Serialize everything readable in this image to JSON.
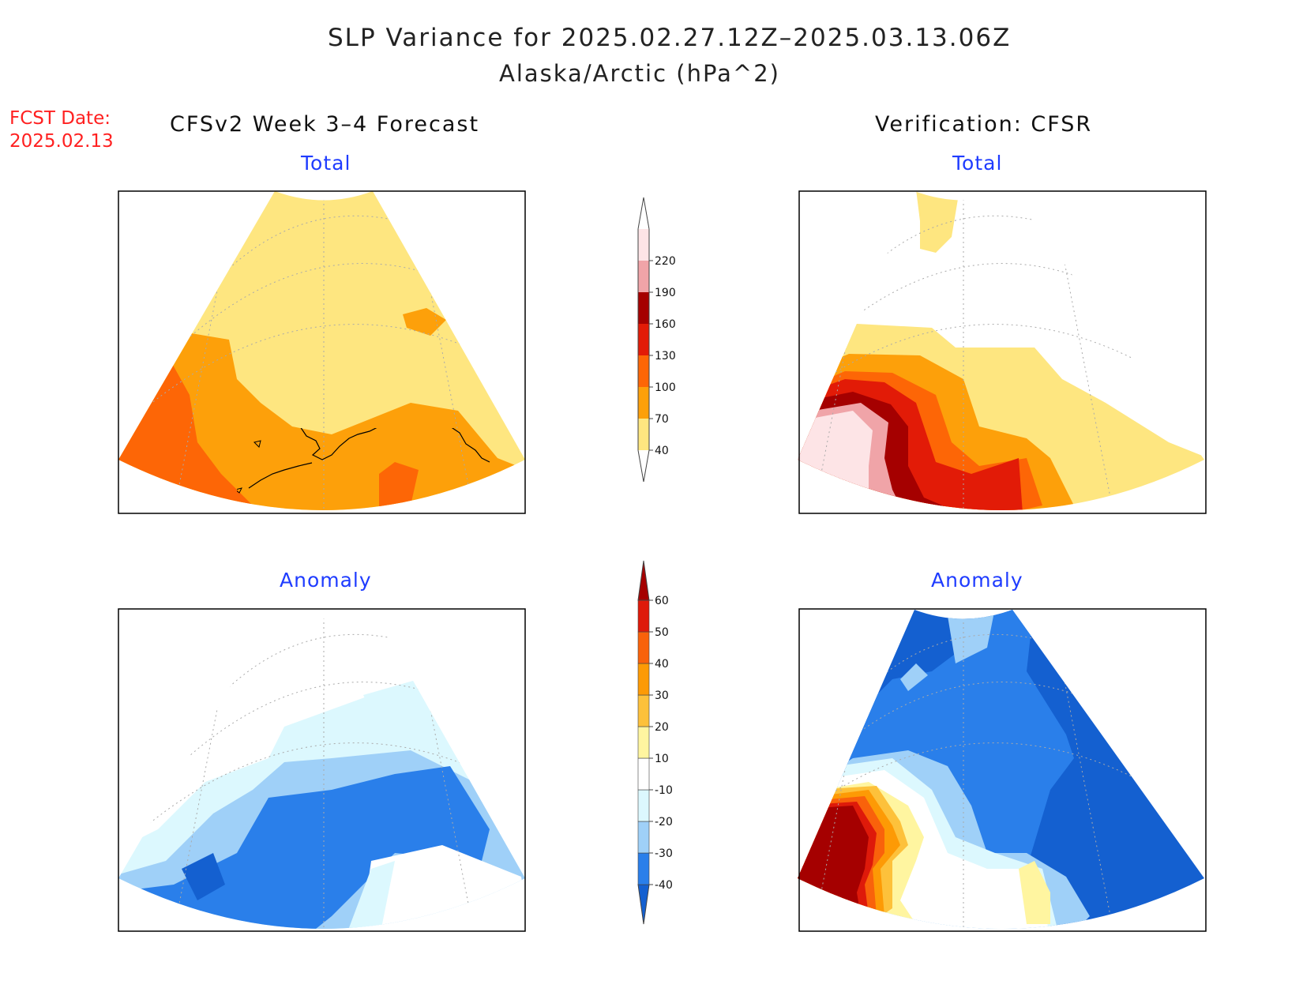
{
  "title": "SLP Variance for 2025.02.27.12Z–2025.03.13.06Z",
  "subtitle": "Alaska/Arctic (hPa^2)",
  "forecast_date": {
    "label": "FCST Date:",
    "value": "2025.02.13"
  },
  "columns": {
    "left": "CFSv2 Week 3–4 Forecast",
    "right": "Verification: CFSR"
  },
  "panels": {
    "forecast_total": {
      "title": "Total"
    },
    "verification_total": {
      "title": "Total"
    },
    "forecast_anomaly": {
      "title": "Anomaly"
    },
    "verification_anomaly": {
      "title": "Anomaly"
    }
  },
  "colorbars": {
    "total": {
      "labels": [
        "40",
        "70",
        "100",
        "130",
        "160",
        "190",
        "220"
      ],
      "colors": [
        "#fee680",
        "#fda00a",
        "#fd6606",
        "#e21b07",
        "#a50000",
        "#f0a4a8",
        "#fde4e6"
      ]
    },
    "anomaly": {
      "labels": [
        "-40",
        "-30",
        "-20",
        "-10",
        "10",
        "20",
        "30",
        "40",
        "50",
        "60"
      ],
      "colors": [
        "#1460d0",
        "#2a7fea",
        "#9fd0f8",
        "#dcf8fe",
        "#ffffff",
        "#fff5a0",
        "#fdc13b",
        "#fd9a05",
        "#f9620b",
        "#de1a0a",
        "#a50000"
      ]
    }
  }
}
